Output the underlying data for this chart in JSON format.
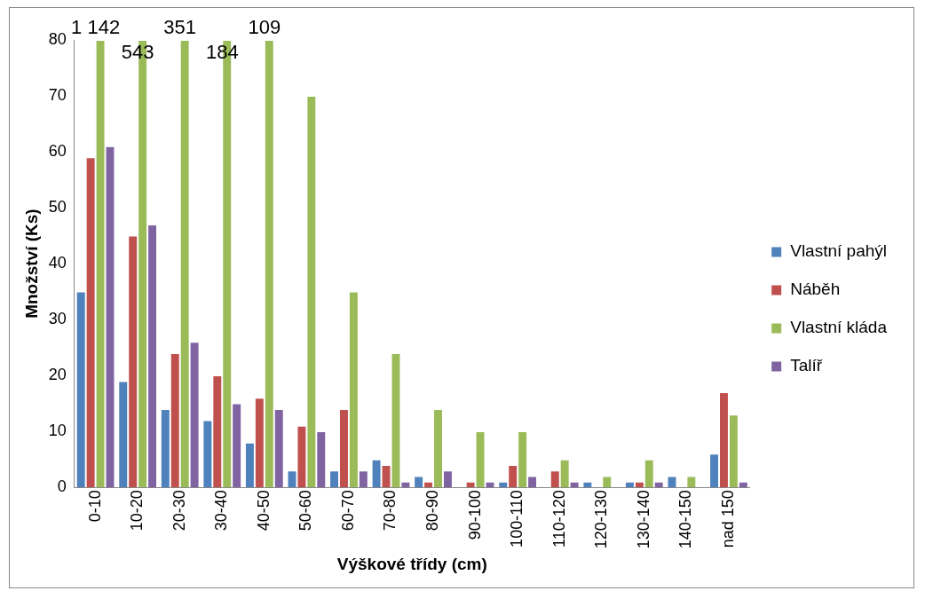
{
  "chart_data": {
    "type": "bar",
    "xlabel": "Výškové třídy (cm)",
    "ylabel": "Množství (Ks)",
    "categories": [
      "0-10",
      "10-20",
      "20-30",
      "30-40",
      "40-50",
      "50-60",
      "60-70",
      "70-80",
      "80-90",
      "90-100",
      "100-110",
      "110-120",
      "120-130",
      "130-140",
      "140-150",
      "nad 150"
    ],
    "series": [
      {
        "name": "Vlastní pahýl",
        "color": "#4f81bd",
        "values": [
          35,
          19,
          14,
          12,
          8,
          3,
          3,
          5,
          2,
          0,
          1,
          0,
          1,
          1,
          2,
          6
        ]
      },
      {
        "name": "Náběh",
        "color": "#c0504d",
        "values": [
          59,
          45,
          24,
          20,
          16,
          11,
          14,
          4,
          1,
          1,
          4,
          3,
          0,
          1,
          0,
          17
        ]
      },
      {
        "name": "Vlastní kláda",
        "color": "#9bbb59",
        "values": [
          80,
          80,
          80,
          80,
          80,
          70,
          35,
          24,
          14,
          10,
          10,
          5,
          2,
          5,
          2,
          13
        ]
      },
      {
        "name": "Talíř",
        "color": "#8064a2",
        "values": [
          61,
          47,
          26,
          15,
          14,
          10,
          3,
          1,
          3,
          1,
          2,
          1,
          0,
          1,
          0,
          1
        ]
      }
    ],
    "ylim": [
      0,
      80
    ],
    "yticks": [
      0,
      10,
      20,
      30,
      40,
      50,
      60,
      70,
      80
    ],
    "grid": false,
    "legend": "right",
    "annotations": [
      {
        "text": "1 142",
        "x": "0-10",
        "y": 80
      },
      {
        "text": "543",
        "x": "10-20",
        "y": 80
      },
      {
        "text": "351",
        "x": "20-30",
        "y": 80
      },
      {
        "text": "184",
        "x": "30-40",
        "y": 80
      },
      {
        "text": "109",
        "x": "40-50",
        "y": 80
      }
    ]
  }
}
